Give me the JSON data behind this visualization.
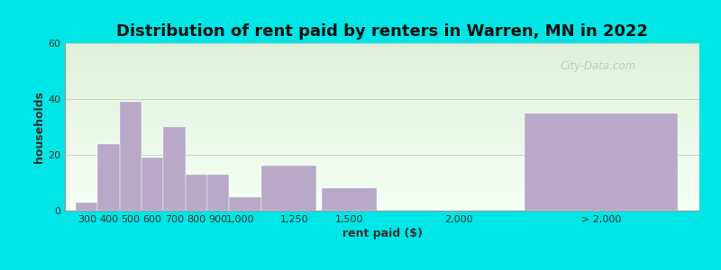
{
  "title": "Distribution of rent paid by renters in Warren, MN in 2022",
  "xlabel": "rent paid ($)",
  "ylabel": "households",
  "bar_color": "#b8a9c9",
  "background_outer": "#00e5e5",
  "ylim": [
    0,
    60
  ],
  "yticks": [
    0,
    20,
    40,
    60
  ],
  "bar_labels": [
    "300",
    "400",
    "500",
    "600",
    "700",
    "800",
    "900",
    "1,000",
    "1,250",
    "1,500",
    "2,000",
    "> 2,000"
  ],
  "bar_lefts": [
    250,
    350,
    450,
    550,
    650,
    750,
    850,
    950,
    1100,
    1375,
    1900,
    2300
  ],
  "bar_widths": [
    100,
    100,
    100,
    100,
    100,
    100,
    100,
    150,
    250,
    250,
    100,
    700
  ],
  "bar_values": [
    3,
    24,
    39,
    19,
    30,
    13,
    13,
    5,
    16,
    8,
    0,
    35
  ],
  "xtick_positions": [
    300,
    400,
    500,
    600,
    700,
    800,
    900,
    1000,
    1250,
    1500,
    2000,
    2650
  ],
  "xtick_labels": [
    "300",
    "400",
    "500",
    "600",
    "700",
    "800",
    "900",
    "1,000",
    "1,250",
    "1,500",
    "2,000",
    "> 2,000"
  ],
  "xlim": [
    200,
    3100
  ],
  "title_fontsize": 13,
  "axis_label_fontsize": 9,
  "tick_fontsize": 8,
  "watermark_text": "City-Data.com",
  "grad_top_color": "#dff0d8",
  "grad_bottom_color": "#f5fff5"
}
